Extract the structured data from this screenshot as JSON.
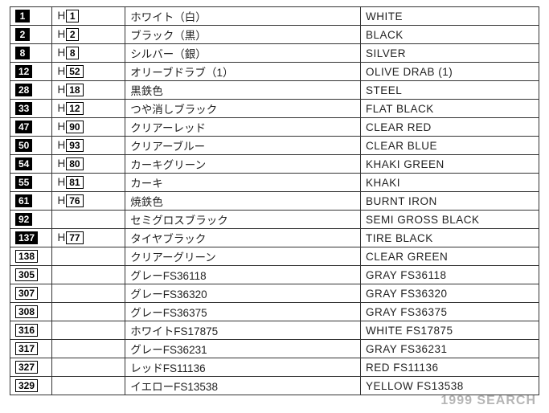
{
  "watermark": "1999 SEARCH",
  "rows": [
    {
      "code1": "1",
      "code1_style": "solid",
      "h": "1",
      "jp": "ホワイト（白）",
      "en": "WHITE"
    },
    {
      "code1": "2",
      "code1_style": "solid",
      "h": "2",
      "jp": "ブラック（黒）",
      "en": "BLACK"
    },
    {
      "code1": "8",
      "code1_style": "solid",
      "h": "8",
      "jp": "シルバー（銀）",
      "en": "SILVER"
    },
    {
      "code1": "12",
      "code1_style": "solid",
      "h": "52",
      "jp": "オリーブドラブ（1）",
      "en": "OLIVE DRAB (1)"
    },
    {
      "code1": "28",
      "code1_style": "solid",
      "h": "18",
      "jp": "黒鉄色",
      "en": "STEEL"
    },
    {
      "code1": "33",
      "code1_style": "solid",
      "h": "12",
      "jp": "つや消しブラック",
      "en": "FLAT BLACK"
    },
    {
      "code1": "47",
      "code1_style": "solid",
      "h": "90",
      "jp": "クリアーレッド",
      "en": "CLEAR RED"
    },
    {
      "code1": "50",
      "code1_style": "solid",
      "h": "93",
      "jp": "クリアーブルー",
      "en": "CLEAR BLUE"
    },
    {
      "code1": "54",
      "code1_style": "solid",
      "h": "80",
      "jp": "カーキグリーン",
      "en": "KHAKI GREEN"
    },
    {
      "code1": "55",
      "code1_style": "solid",
      "h": "81",
      "jp": "カーキ",
      "en": "KHAKI"
    },
    {
      "code1": "61",
      "code1_style": "solid",
      "h": "76",
      "jp": "焼鉄色",
      "en": "BURNT IRON"
    },
    {
      "code1": "92",
      "code1_style": "solid",
      "h": "",
      "jp": "セミグロスブラック",
      "en": "SEMI GROSS BLACK"
    },
    {
      "code1": "137",
      "code1_style": "solid",
      "h": "77",
      "jp": "タイヤブラック",
      "en": "TIRE BLACK"
    },
    {
      "code1": "138",
      "code1_style": "outline",
      "h": "",
      "jp": "クリアーグリーン",
      "en": "CLEAR GREEN"
    },
    {
      "code1": "305",
      "code1_style": "outline",
      "h": "",
      "jp": "グレーFS36118",
      "en": "GRAY FS36118"
    },
    {
      "code1": "307",
      "code1_style": "outline",
      "h": "",
      "jp": "グレーFS36320",
      "en": "GRAY FS36320"
    },
    {
      "code1": "308",
      "code1_style": "outline",
      "h": "",
      "jp": "グレーFS36375",
      "en": "GRAY FS36375"
    },
    {
      "code1": "316",
      "code1_style": "outline",
      "h": "",
      "jp": "ホワイトFS17875",
      "en": "WHITE FS17875"
    },
    {
      "code1": "317",
      "code1_style": "outline",
      "h": "",
      "jp": "グレーFS36231",
      "en": "GRAY FS36231"
    },
    {
      "code1": "327",
      "code1_style": "outline",
      "h": "",
      "jp": "レッドFS11136",
      "en": "RED FS11136"
    },
    {
      "code1": "329",
      "code1_style": "outline",
      "h": "",
      "jp": "イエローFS13538",
      "en": "YELLOW FS13538"
    }
  ]
}
